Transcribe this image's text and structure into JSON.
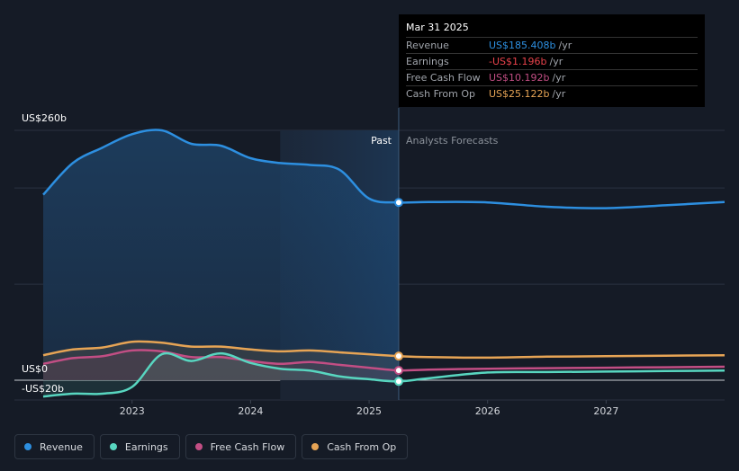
{
  "chart_data": {
    "type": "area",
    "y_axis": {
      "label_top": "US$260b",
      "label_zero": "US$0",
      "label_bottom": "-US$20b",
      "ylim": [
        -20,
        260
      ]
    },
    "x_axis": {
      "xlim": [
        2022.25,
        2028.0
      ],
      "ticks": [
        2023,
        2024,
        2025,
        2026,
        2027
      ],
      "tick_labels": [
        "2023",
        "2024",
        "2025",
        "2026",
        "2027"
      ]
    },
    "divider": {
      "x": 2025.25,
      "past_label": "Past",
      "forecast_label": "Analysts Forecasts"
    },
    "shaded_region_start": 2024.25,
    "series": [
      {
        "name": "Revenue",
        "color": "#2d8fe0",
        "points": [
          [
            2022.25,
            193
          ],
          [
            2022.5,
            226
          ],
          [
            2022.75,
            242
          ],
          [
            2023.0,
            256
          ],
          [
            2023.25,
            260
          ],
          [
            2023.5,
            246
          ],
          [
            2023.75,
            244
          ],
          [
            2024.0,
            231
          ],
          [
            2024.25,
            226
          ],
          [
            2024.5,
            224
          ],
          [
            2024.75,
            219
          ],
          [
            2025.0,
            189
          ],
          [
            2025.25,
            185
          ],
          [
            2025.5,
            185.4
          ],
          [
            2026.0,
            185
          ],
          [
            2026.5,
            180.5
          ],
          [
            2027.0,
            179
          ],
          [
            2027.5,
            182
          ],
          [
            2028.0,
            185.5
          ]
        ]
      },
      {
        "name": "Earnings",
        "color": "#58d6c0",
        "points": [
          [
            2022.25,
            -17
          ],
          [
            2022.5,
            -14
          ],
          [
            2022.75,
            -14
          ],
          [
            2023.0,
            -7
          ],
          [
            2023.25,
            27
          ],
          [
            2023.5,
            20
          ],
          [
            2023.75,
            28
          ],
          [
            2024.0,
            18
          ],
          [
            2024.25,
            12
          ],
          [
            2024.5,
            10
          ],
          [
            2024.75,
            4
          ],
          [
            2025.0,
            1
          ],
          [
            2025.25,
            -1.2
          ],
          [
            2025.5,
            2
          ],
          [
            2026.0,
            8
          ],
          [
            2026.5,
            8.5
          ],
          [
            2027.0,
            9
          ],
          [
            2027.5,
            9.5
          ],
          [
            2028.0,
            10
          ]
        ]
      },
      {
        "name": "Free Cash Flow",
        "color": "#c24e84",
        "points": [
          [
            2022.25,
            17
          ],
          [
            2022.5,
            23
          ],
          [
            2022.75,
            25
          ],
          [
            2023.0,
            31
          ],
          [
            2023.25,
            30
          ],
          [
            2023.5,
            24
          ],
          [
            2023.75,
            24
          ],
          [
            2024.0,
            20
          ],
          [
            2024.25,
            17
          ],
          [
            2024.5,
            19
          ],
          [
            2024.75,
            16
          ],
          [
            2025.0,
            13
          ],
          [
            2025.25,
            10.2
          ],
          [
            2025.5,
            11
          ],
          [
            2026.0,
            12
          ],
          [
            2026.5,
            12.5
          ],
          [
            2027.0,
            13
          ],
          [
            2027.5,
            13.5
          ],
          [
            2028.0,
            14
          ]
        ]
      },
      {
        "name": "Cash From Op",
        "color": "#e6a455",
        "points": [
          [
            2022.25,
            26
          ],
          [
            2022.5,
            32
          ],
          [
            2022.75,
            34
          ],
          [
            2023.0,
            40
          ],
          [
            2023.25,
            39
          ],
          [
            2023.5,
            35
          ],
          [
            2023.75,
            35
          ],
          [
            2024.0,
            32
          ],
          [
            2024.25,
            30
          ],
          [
            2024.5,
            31
          ],
          [
            2024.75,
            29
          ],
          [
            2025.0,
            27
          ],
          [
            2025.25,
            25.1
          ],
          [
            2025.5,
            24
          ],
          [
            2026.0,
            23.5
          ],
          [
            2026.5,
            24.5
          ],
          [
            2027.0,
            25
          ],
          [
            2027.5,
            25.5
          ],
          [
            2028.0,
            26
          ]
        ]
      }
    ],
    "highlight_x": 2025.25
  },
  "tooltip": {
    "date": "Mar 31 2025",
    "rows": [
      {
        "label": "Revenue",
        "value": "US$185.408b",
        "unit": "/yr",
        "color": "#2d8fe0"
      },
      {
        "label": "Earnings",
        "value": "-US$1.196b",
        "unit": "/yr",
        "color": "#e8424b"
      },
      {
        "label": "Free Cash Flow",
        "value": "US$10.192b",
        "unit": "/yr",
        "color": "#c24e84"
      },
      {
        "label": "Cash From Op",
        "value": "US$25.122b",
        "unit": "/yr",
        "color": "#e6a455"
      }
    ]
  },
  "legend": [
    {
      "label": "Revenue",
      "color": "#2d8fe0"
    },
    {
      "label": "Earnings",
      "color": "#58d6c0"
    },
    {
      "label": "Free Cash Flow",
      "color": "#c24e84"
    },
    {
      "label": "Cash From Op",
      "color": "#e6a455"
    }
  ]
}
